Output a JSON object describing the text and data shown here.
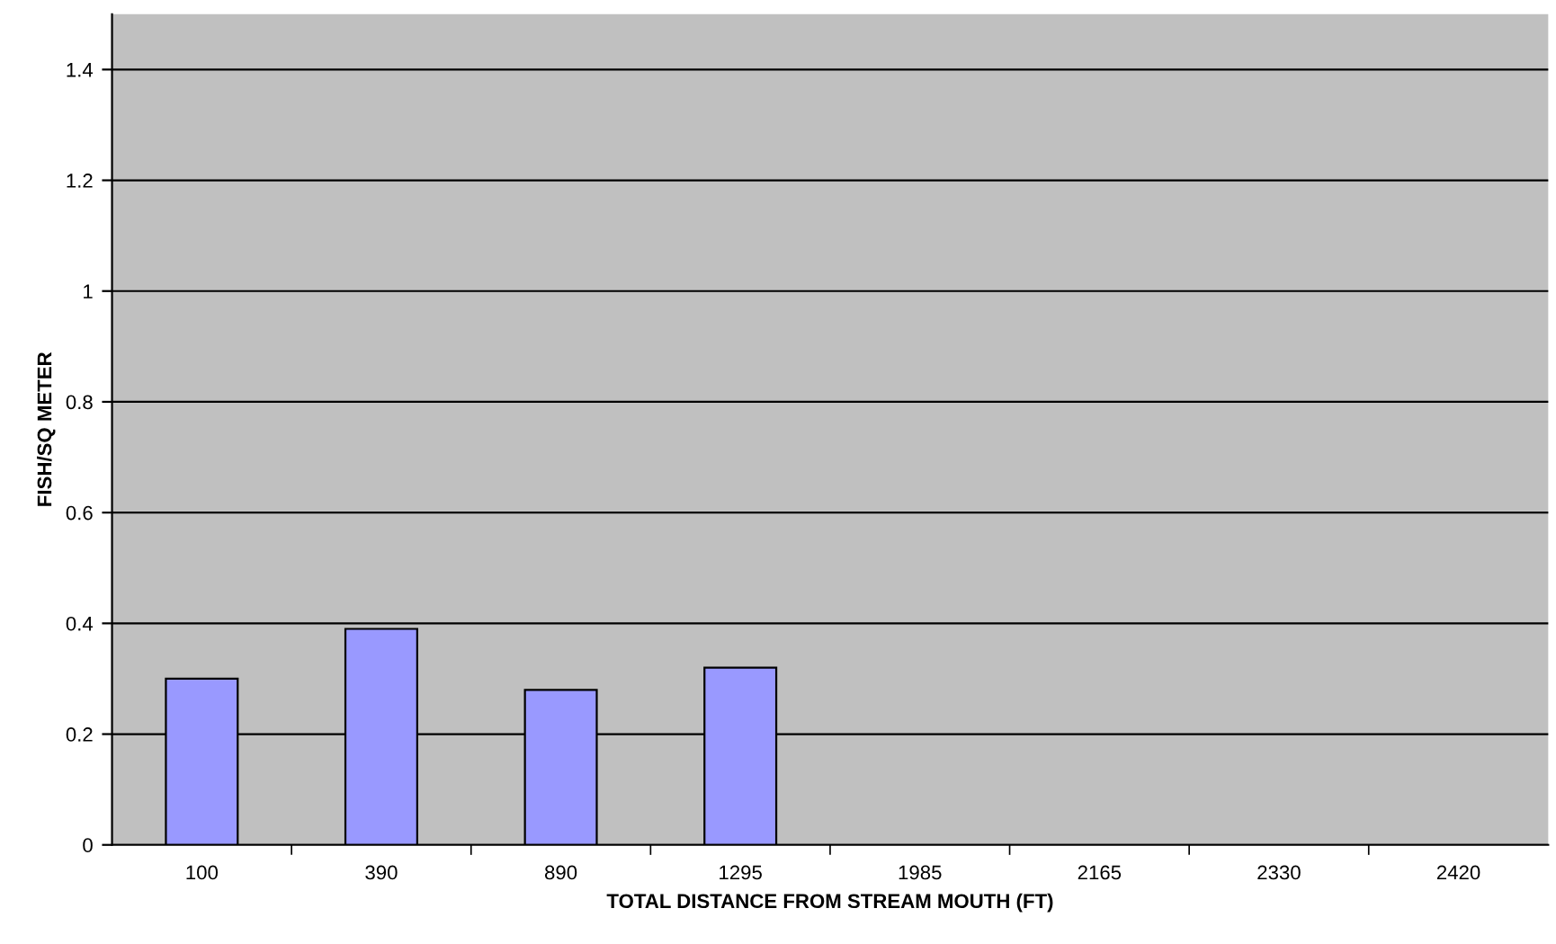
{
  "chart_data": {
    "type": "bar",
    "xlabel": "TOTAL DISTANCE FROM STREAM MOUTH (FT)",
    "ylabel": "FISH/SQ METER",
    "categories": [
      "100",
      "390",
      "890",
      "1295",
      "1985",
      "2165",
      "2330",
      "2420"
    ],
    "values": [
      0.3,
      0.39,
      0.28,
      0.32,
      null,
      null,
      null,
      null
    ],
    "color": "#9999ff",
    "ylim": [
      0,
      1.5
    ],
    "yticks": [
      0,
      0.2,
      0.4,
      0.6,
      0.8,
      1,
      1.2,
      1.4
    ],
    "grid": "y"
  }
}
